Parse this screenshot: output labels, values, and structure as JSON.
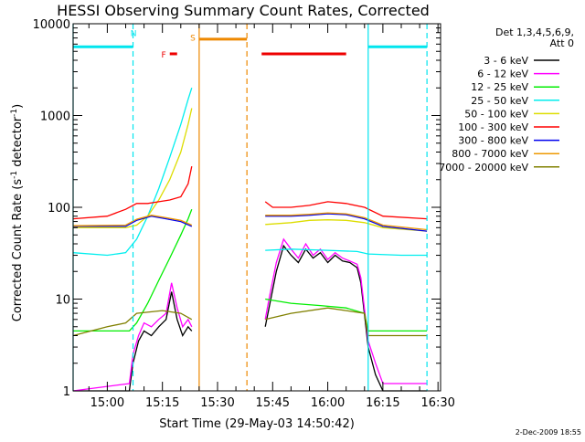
{
  "title": "HESSI Observing Summary Count Rates, Corrected",
  "footer_date": "2-Dec-2009 18:55",
  "chart_data": {
    "type": "line",
    "title": "HESSI Observing Summary Count Rates, Corrected",
    "xlabel": "Start Time (29-May-03 14:50:42)",
    "ylabel_main": "Corrected Count Rate (s",
    "ylabel_sup1": "-1",
    "ylabel_mid": " detector",
    "ylabel_sup2": "-1",
    "ylabel_end": ")",
    "ylabel_full": "Corrected Count Rate (s^-1 detector^-1)",
    "yscale": "log",
    "ylim": [
      1,
      10000
    ],
    "xlim": [
      "14:50:42",
      "16:30:42"
    ],
    "grid": false,
    "legend_placement": "right",
    "legend_header": [
      "Det 1,3,4,5,6,9,",
      "Att 0"
    ],
    "x_ticks": [
      "15:00",
      "15:15",
      "15:30",
      "15:45",
      "16:00",
      "16:15",
      "16:30"
    ],
    "y_ticks": [
      "1",
      "10",
      "100",
      "1000",
      "10000"
    ],
    "colors": {
      "night": "#00e5ee",
      "saa": "#ee8800",
      "flare": "#ee0000"
    },
    "flag_labels": {
      "night": "N",
      "flare": "F",
      "saa": "S"
    },
    "flags": [
      {
        "type": "night",
        "start": "14:50:42",
        "end": "15:07:00",
        "value": 5600
      },
      {
        "type": "night",
        "start": "16:11:00",
        "end": "16:27:00",
        "value": 5600
      },
      {
        "type": "flare",
        "start": "15:17:00",
        "end": "15:19:00",
        "value": 4700
      },
      {
        "type": "saa",
        "start": "15:25:00",
        "end": "15:38:00",
        "value": 6800
      },
      {
        "type": "flare",
        "start": "15:42:00",
        "end": "16:05:00",
        "value": 4700
      }
    ],
    "vlines": [
      {
        "type": "night",
        "time": "14:50:42",
        "style": "solid"
      },
      {
        "type": "night",
        "time": "15:07:00",
        "style": "dashed"
      },
      {
        "type": "saa",
        "time": "15:25:00",
        "style": "solid"
      },
      {
        "type": "saa",
        "time": "15:38:00",
        "style": "dashed"
      },
      {
        "type": "night",
        "time": "16:11:00",
        "style": "solid"
      },
      {
        "type": "night",
        "time": "16:27:00",
        "style": "dashed"
      }
    ],
    "series": [
      {
        "name": "3 - 6 keV",
        "color": "#000000",
        "segments": [
          {
            "t": [
              "14:50:42",
              "15:06:00",
              "15:07:00",
              "15:08:30",
              "15:10:00",
              "15:12:00",
              "15:14:00",
              "15:16:00",
              "15:17:30",
              "15:19:00",
              "15:20:30",
              "15:22:00",
              "15:23:00"
            ],
            "v": [
              1.0,
              1.0,
              2.0,
              3.5,
              4.5,
              4.0,
              5.0,
              6.0,
              12.0,
              6.0,
              4.0,
              5.0,
              4.5
            ]
          },
          {
            "t": [
              "15:43:00",
              "15:44:00",
              "15:46:00",
              "15:48:00",
              "15:50:00",
              "15:52:00",
              "15:54:00",
              "15:56:00",
              "15:58:00",
              "16:00:00",
              "16:02:00",
              "16:04:00",
              "16:06:00",
              "16:08:00",
              "16:09:00",
              "16:11:00",
              "16:13:00",
              "16:15:00",
              "16:27:00"
            ],
            "v": [
              5.0,
              8.0,
              20.0,
              38.0,
              30.0,
              25.0,
              35.0,
              28.0,
              32.0,
              25.0,
              30.0,
              26.0,
              25.0,
              22.0,
              15.0,
              3.0,
              1.5,
              1.0,
              1.0
            ]
          }
        ]
      },
      {
        "name": "6 - 12 keV",
        "color": "#ff00ff",
        "segments": [
          {
            "t": [
              "14:50:42",
              "15:06:00",
              "15:07:00",
              "15:08:30",
              "15:10:00",
              "15:12:00",
              "15:14:00",
              "15:16:00",
              "15:17:30",
              "15:19:00",
              "15:20:30",
              "15:22:00",
              "15:23:00"
            ],
            "v": [
              1.0,
              1.2,
              2.5,
              4.0,
              5.5,
              5.0,
              6.0,
              7.0,
              15.0,
              8.0,
              5.0,
              6.0,
              5.0
            ]
          },
          {
            "t": [
              "15:43:00",
              "15:44:00",
              "15:46:00",
              "15:48:00",
              "15:50:00",
              "15:52:00",
              "15:54:00",
              "15:56:00",
              "15:58:00",
              "16:00:00",
              "16:02:00",
              "16:04:00",
              "16:06:00",
              "16:08:00",
              "16:09:00",
              "16:11:00",
              "16:13:00",
              "16:15:00",
              "16:27:00"
            ],
            "v": [
              6.0,
              10.0,
              25.0,
              45.0,
              35.0,
              28.0,
              40.0,
              30.0,
              35.0,
              27.0,
              32.0,
              28.0,
              26.0,
              24.0,
              17.0,
              3.5,
              2.0,
              1.2,
              1.2
            ]
          }
        ]
      },
      {
        "name": "12 - 25 keV",
        "color": "#00ee00",
        "segments": [
          {
            "t": [
              "14:50:42",
              "15:06:00",
              "15:08:00",
              "15:11:00",
              "15:14:00",
              "15:17:00",
              "15:20:00",
              "15:22:00",
              "15:23:00"
            ],
            "v": [
              4.5,
              4.5,
              5.5,
              9.0,
              16.0,
              28.0,
              50.0,
              75.0,
              95.0
            ]
          },
          {
            "t": [
              "15:43:00",
              "15:50:00",
              "15:58:00",
              "16:05:00",
              "16:10:00",
              "16:11:00",
              "16:27:00"
            ],
            "v": [
              10.0,
              9.0,
              8.5,
              8.0,
              7.0,
              4.5,
              4.5
            ]
          }
        ]
      },
      {
        "name": "25 - 50 keV",
        "color": "#00eeee",
        "segments": [
          {
            "t": [
              "14:50:42",
              "15:00:00",
              "15:05:00",
              "15:08:00",
              "15:11:00",
              "15:14:00",
              "15:17:00",
              "15:20:00",
              "15:22:00",
              "15:23:00"
            ],
            "v": [
              32.0,
              30.0,
              32.0,
              45.0,
              80.0,
              160.0,
              350.0,
              800.0,
              1500.0,
              2000.0
            ]
          },
          {
            "t": [
              "15:43:00",
              "15:50:00",
              "16:00:00",
              "16:08:00",
              "16:11:00",
              "16:20:00",
              "16:27:00"
            ],
            "v": [
              34.0,
              35.0,
              34.0,
              33.0,
              31.0,
              30.0,
              30.0
            ]
          }
        ]
      },
      {
        "name": "50 - 100 keV",
        "color": "#dddd00",
        "segments": [
          {
            "t": [
              "14:50:42",
              "15:05:00",
              "15:08:00",
              "15:11:00",
              "15:14:00",
              "15:17:00",
              "15:20:00",
              "15:22:00",
              "15:23:00"
            ],
            "v": [
              60.0,
              60.0,
              64.0,
              80.0,
              120.0,
              200.0,
              400.0,
              800.0,
              1200.0
            ]
          },
          {
            "t": [
              "15:43:00",
              "15:50:00",
              "15:55:00",
              "16:00:00",
              "16:05:00",
              "16:10:00",
              "16:15:00",
              "16:27:00"
            ],
            "v": [
              65.0,
              68.0,
              72.0,
              73.0,
              72.0,
              68.0,
              60.0,
              55.0
            ]
          }
        ]
      },
      {
        "name": "100 - 300 keV",
        "color": "#ff0000",
        "segments": [
          {
            "t": [
              "14:50:42",
              "15:00:00",
              "15:05:00",
              "15:08:00",
              "15:11:00",
              "15:14:00",
              "15:17:00",
              "15:20:00",
              "15:22:00",
              "15:23:00"
            ],
            "v": [
              75.0,
              80.0,
              95.0,
              110.0,
              110.0,
              115.0,
              120.0,
              130.0,
              180.0,
              280.0
            ]
          },
          {
            "t": [
              "15:43:00",
              "15:45:00",
              "15:50:00",
              "15:55:00",
              "16:00:00",
              "16:05:00",
              "16:10:00",
              "16:15:00",
              "16:27:00"
            ],
            "v": [
              115.0,
              100.0,
              100.0,
              105.0,
              115.0,
              110.0,
              100.0,
              80.0,
              75.0
            ]
          }
        ]
      },
      {
        "name": "300 - 800 keV",
        "color": "#0000ee",
        "segments": [
          {
            "t": [
              "14:50:42",
              "15:05:00",
              "15:08:00",
              "15:12:00",
              "15:16:00",
              "15:20:00",
              "15:23:00"
            ],
            "v": [
              62.0,
              62.0,
              72.0,
              80.0,
              75.0,
              70.0,
              62.0
            ]
          },
          {
            "t": [
              "15:43:00",
              "15:50:00",
              "15:55:00",
              "16:00:00",
              "16:05:00",
              "16:10:00",
              "16:15:00",
              "16:27:00"
            ],
            "v": [
              80.0,
              80.0,
              82.0,
              85.0,
              83.0,
              75.0,
              62.0,
              55.0
            ]
          }
        ]
      },
      {
        "name": "800 - 7000 keV",
        "color": "#ee9900",
        "segments": [
          {
            "t": [
              "14:50:42",
              "15:05:00",
              "15:08:00",
              "15:12:00",
              "15:16:00",
              "15:20:00",
              "15:23:00"
            ],
            "v": [
              63.0,
              64.0,
              74.0,
              82.0,
              77.0,
              72.0,
              64.0
            ]
          },
          {
            "t": [
              "15:43:00",
              "15:50:00",
              "15:55:00",
              "16:00:00",
              "16:05:00",
              "16:10:00",
              "16:15:00",
              "16:27:00"
            ],
            "v": [
              82.0,
              82.0,
              84.0,
              87.0,
              85.0,
              77.0,
              64.0,
              57.0
            ]
          }
        ]
      },
      {
        "name": "7000 - 20000 keV",
        "color": "#808000",
        "segments": [
          {
            "t": [
              "14:50:42",
              "15:00:00",
              "15:05:00",
              "15:08:00",
              "15:15:00",
              "15:20:00",
              "15:23:00"
            ],
            "v": [
              4.0,
              5.0,
              5.5,
              7.0,
              7.5,
              7.0,
              6.0
            ]
          },
          {
            "t": [
              "15:43:00",
              "15:50:00",
              "16:00:00",
              "16:10:00",
              "16:11:00",
              "16:27:00"
            ],
            "v": [
              6.0,
              7.0,
              8.0,
              7.0,
              4.0,
              4.0
            ]
          }
        ]
      }
    ]
  }
}
